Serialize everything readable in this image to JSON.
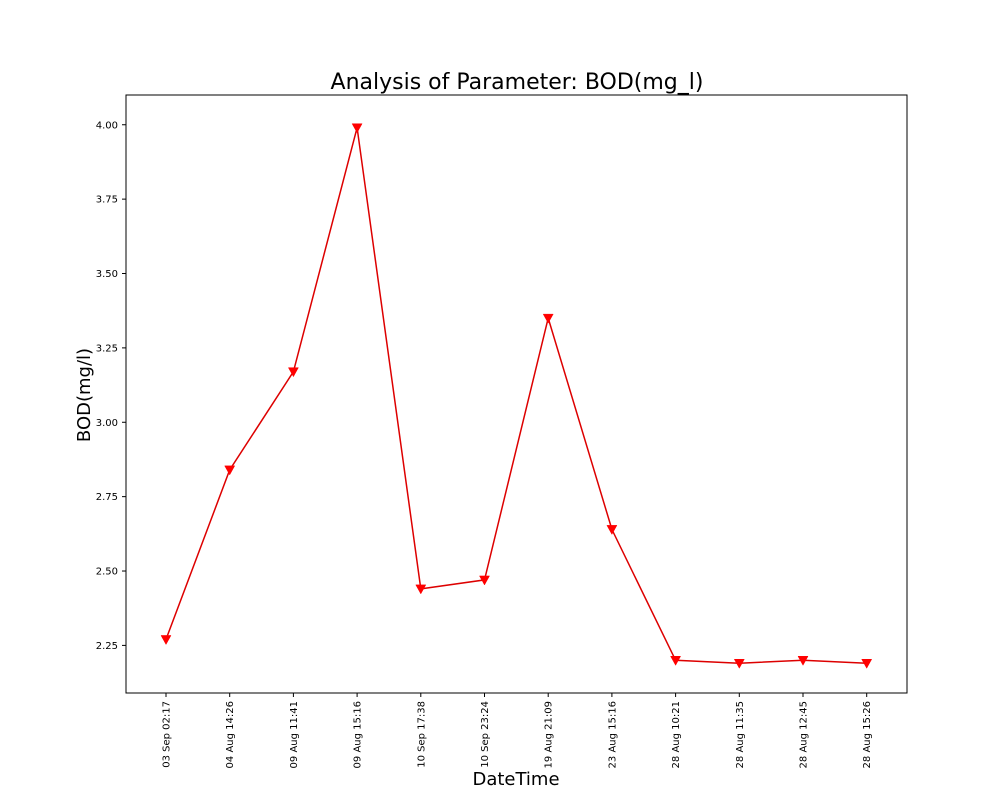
{
  "chart_data": {
    "type": "line",
    "title": "Analysis of Parameter: BOD(mg_l)",
    "xlabel": "DateTime",
    "ylabel": "BOD(mg/l)",
    "categories": [
      "03 Sep 02:17",
      "04 Aug 14:26",
      "09 Aug 11:41",
      "09 Aug 15:16",
      "10 Sep 17:38",
      "10 Sep 23:24",
      "19 Aug 21:09",
      "23 Aug 15:16",
      "28 Aug 10:21",
      "28 Aug 11:35",
      "28 Aug 12:45",
      "28 Aug 15:26"
    ],
    "series": [
      {
        "values": [
          2.27,
          2.84,
          3.17,
          3.99,
          2.44,
          2.47,
          3.35,
          2.64,
          2.2,
          2.19,
          2.2,
          2.19
        ],
        "color": "#ff0000",
        "line_color": "#dd0000",
        "marker": "triangle-down"
      }
    ],
    "ylim": [
      2.09,
      4.1
    ],
    "yticks": [
      "2.25",
      "2.50",
      "2.75",
      "3.00",
      "3.25",
      "3.50",
      "3.75",
      "4.00"
    ],
    "grid": false,
    "legend": "none"
  }
}
